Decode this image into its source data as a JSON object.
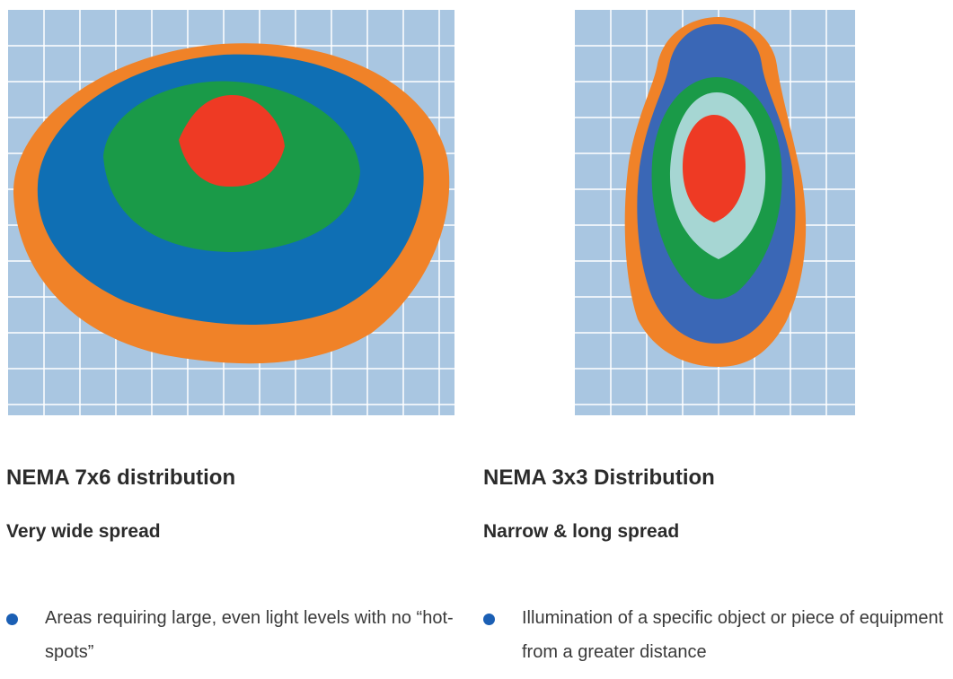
{
  "colors": {
    "grid_background": "#a9c6e1",
    "grid_lines": "#ffffff",
    "orange": "#f08228",
    "blue_left": "#0f6fb4",
    "blue_right": "#3a67b6",
    "green": "#1a9a48",
    "light_teal": "#a6d6d3",
    "red": "#ee3a24",
    "bullet": "#1b5fb4"
  },
  "left": {
    "title": "NEMA 7x6 distribution",
    "subtitle": "Very wide spread",
    "bullets": [
      "Areas requiring large, even light levels with no “hot-spots”"
    ],
    "zones": [
      "orange",
      "blue_left",
      "green",
      "red"
    ]
  },
  "right": {
    "title": "NEMA 3x3 Distribution",
    "subtitle": "Narrow & long spread",
    "bullets": [
      "Illumination of a specific object or piece of equipment from a greater distance"
    ],
    "zones": [
      "orange",
      "blue_right",
      "green",
      "light_teal",
      "red"
    ]
  }
}
